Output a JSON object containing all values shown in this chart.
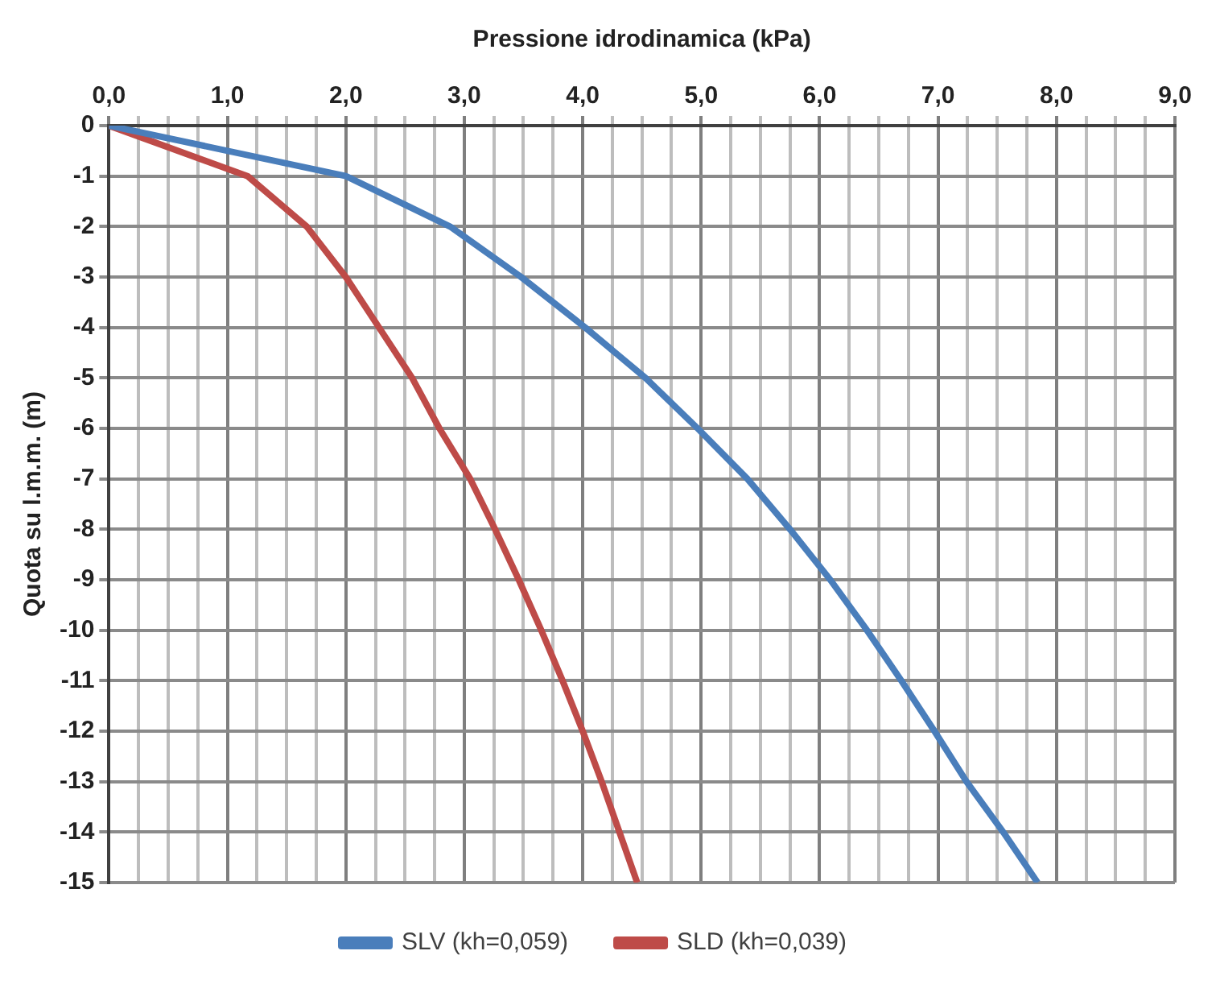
{
  "chart_data": {
    "type": "line",
    "xlabel": "Pressione idrodinamica (kPa)",
    "ylabel": "Quota su l.m.m. (m)",
    "xlim": [
      0,
      9
    ],
    "ylim": [
      -15,
      0
    ],
    "xticks": [
      {
        "value": 0,
        "label": "0,0"
      },
      {
        "value": 0.25,
        "label": null
      },
      {
        "value": 0.5,
        "label": null
      },
      {
        "value": 0.75,
        "label": null
      },
      {
        "value": 1,
        "label": "1,0"
      },
      {
        "value": 1.25,
        "label": null
      },
      {
        "value": 1.5,
        "label": null
      },
      {
        "value": 1.75,
        "label": null
      },
      {
        "value": 2,
        "label": "2,0"
      },
      {
        "value": 2.25,
        "label": null
      },
      {
        "value": 2.5,
        "label": null
      },
      {
        "value": 2.75,
        "label": null
      },
      {
        "value": 3,
        "label": "3,0"
      },
      {
        "value": 3.25,
        "label": null
      },
      {
        "value": 3.5,
        "label": null
      },
      {
        "value": 3.75,
        "label": null
      },
      {
        "value": 4,
        "label": "4,0"
      },
      {
        "value": 4.25,
        "label": null
      },
      {
        "value": 4.5,
        "label": null
      },
      {
        "value": 4.75,
        "label": null
      },
      {
        "value": 5,
        "label": "5,0"
      },
      {
        "value": 5.25,
        "label": null
      },
      {
        "value": 5.5,
        "label": null
      },
      {
        "value": 5.75,
        "label": null
      },
      {
        "value": 6,
        "label": "6,0"
      },
      {
        "value": 6.25,
        "label": null
      },
      {
        "value": 6.5,
        "label": null
      },
      {
        "value": 6.75,
        "label": null
      },
      {
        "value": 7,
        "label": "7,0"
      },
      {
        "value": 7.25,
        "label": null
      },
      {
        "value": 7.5,
        "label": null
      },
      {
        "value": 7.75,
        "label": null
      },
      {
        "value": 8,
        "label": "8,0"
      },
      {
        "value": 8.25,
        "label": null
      },
      {
        "value": 8.5,
        "label": null
      },
      {
        "value": 8.75,
        "label": null
      },
      {
        "value": 9,
        "label": "9,0"
      }
    ],
    "yticks": [
      0,
      -1,
      -2,
      -3,
      -4,
      -5,
      -6,
      -7,
      -8,
      -9,
      -10,
      -11,
      -12,
      -13,
      -14,
      -15
    ],
    "grid": true,
    "legend": "bottom",
    "marker": "none",
    "line_style": "solid",
    "series": [
      {
        "name": "SLV (kh=0,059)",
        "color": "#4a7ebb",
        "x": [
          0,
          2.0,
          2.88,
          3.48,
          4.02,
          4.53,
          4.97,
          5.39,
          5.75,
          6.09,
          6.4,
          6.69,
          6.97,
          7.24,
          7.55,
          7.84
        ],
        "values": [
          0,
          -1,
          -2,
          -3,
          -4,
          -5,
          -6,
          -7,
          -8,
          -9,
          -10,
          -11,
          -12,
          -13,
          -14,
          -15
        ]
      },
      {
        "name": "SLD (kh=0,039)",
        "color": "#be4b48",
        "x": [
          0,
          1.17,
          1.67,
          2.0,
          2.28,
          2.56,
          2.79,
          3.05,
          3.26,
          3.46,
          3.65,
          3.83,
          4.0,
          4.16,
          4.31,
          4.46
        ],
        "values": [
          0,
          -1,
          -2,
          -3,
          -4,
          -5,
          -6,
          -7,
          -8,
          -9,
          -10,
          -11,
          -12,
          -13,
          -14,
          -15
        ]
      }
    ]
  }
}
